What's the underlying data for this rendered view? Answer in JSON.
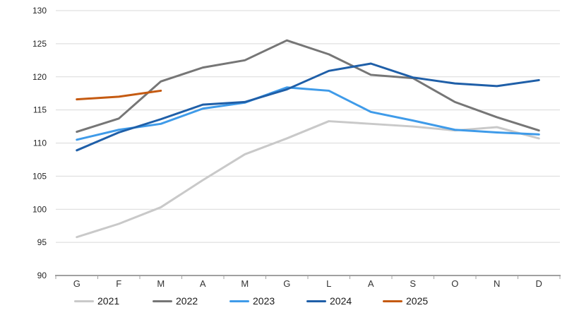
{
  "chart_data": {
    "type": "line",
    "title": "",
    "xlabel": "",
    "ylabel": "",
    "categories": [
      "G",
      "F",
      "M",
      "A",
      "M",
      "G",
      "L",
      "A",
      "S",
      "O",
      "N",
      "D"
    ],
    "y_ticks": [
      90,
      95,
      100,
      105,
      110,
      115,
      120,
      125,
      130
    ],
    "ylim": [
      90,
      130
    ],
    "grid": true,
    "legend_position": "bottom",
    "axis_color": "#a0a0a0",
    "gridline_color": "#d9d9d9",
    "series": [
      {
        "name": "2021",
        "color": "#c9c9c9",
        "values": [
          95.8,
          97.8,
          100.3,
          104.4,
          108.3,
          110.7,
          113.3,
          112.9,
          112.5,
          111.9,
          112.4,
          110.7
        ]
      },
      {
        "name": "2022",
        "color": "#767676",
        "values": [
          111.7,
          113.7,
          119.3,
          121.4,
          122.5,
          125.5,
          123.4,
          120.3,
          119.8,
          116.2,
          113.9,
          111.9
        ]
      },
      {
        "name": "2023",
        "color": "#3f9be9",
        "values": [
          110.5,
          112.0,
          112.9,
          115.2,
          116.1,
          118.4,
          117.9,
          114.7,
          113.4,
          112.0,
          111.6,
          111.3
        ]
      },
      {
        "name": "2024",
        "color": "#1f5fa8",
        "values": [
          108.9,
          111.6,
          113.6,
          115.8,
          116.2,
          118.1,
          120.9,
          122.0,
          119.9,
          119.0,
          118.6,
          119.5
        ]
      },
      {
        "name": "2025",
        "color": "#c55a11",
        "values": [
          116.6,
          117.0,
          117.9
        ]
      }
    ]
  }
}
